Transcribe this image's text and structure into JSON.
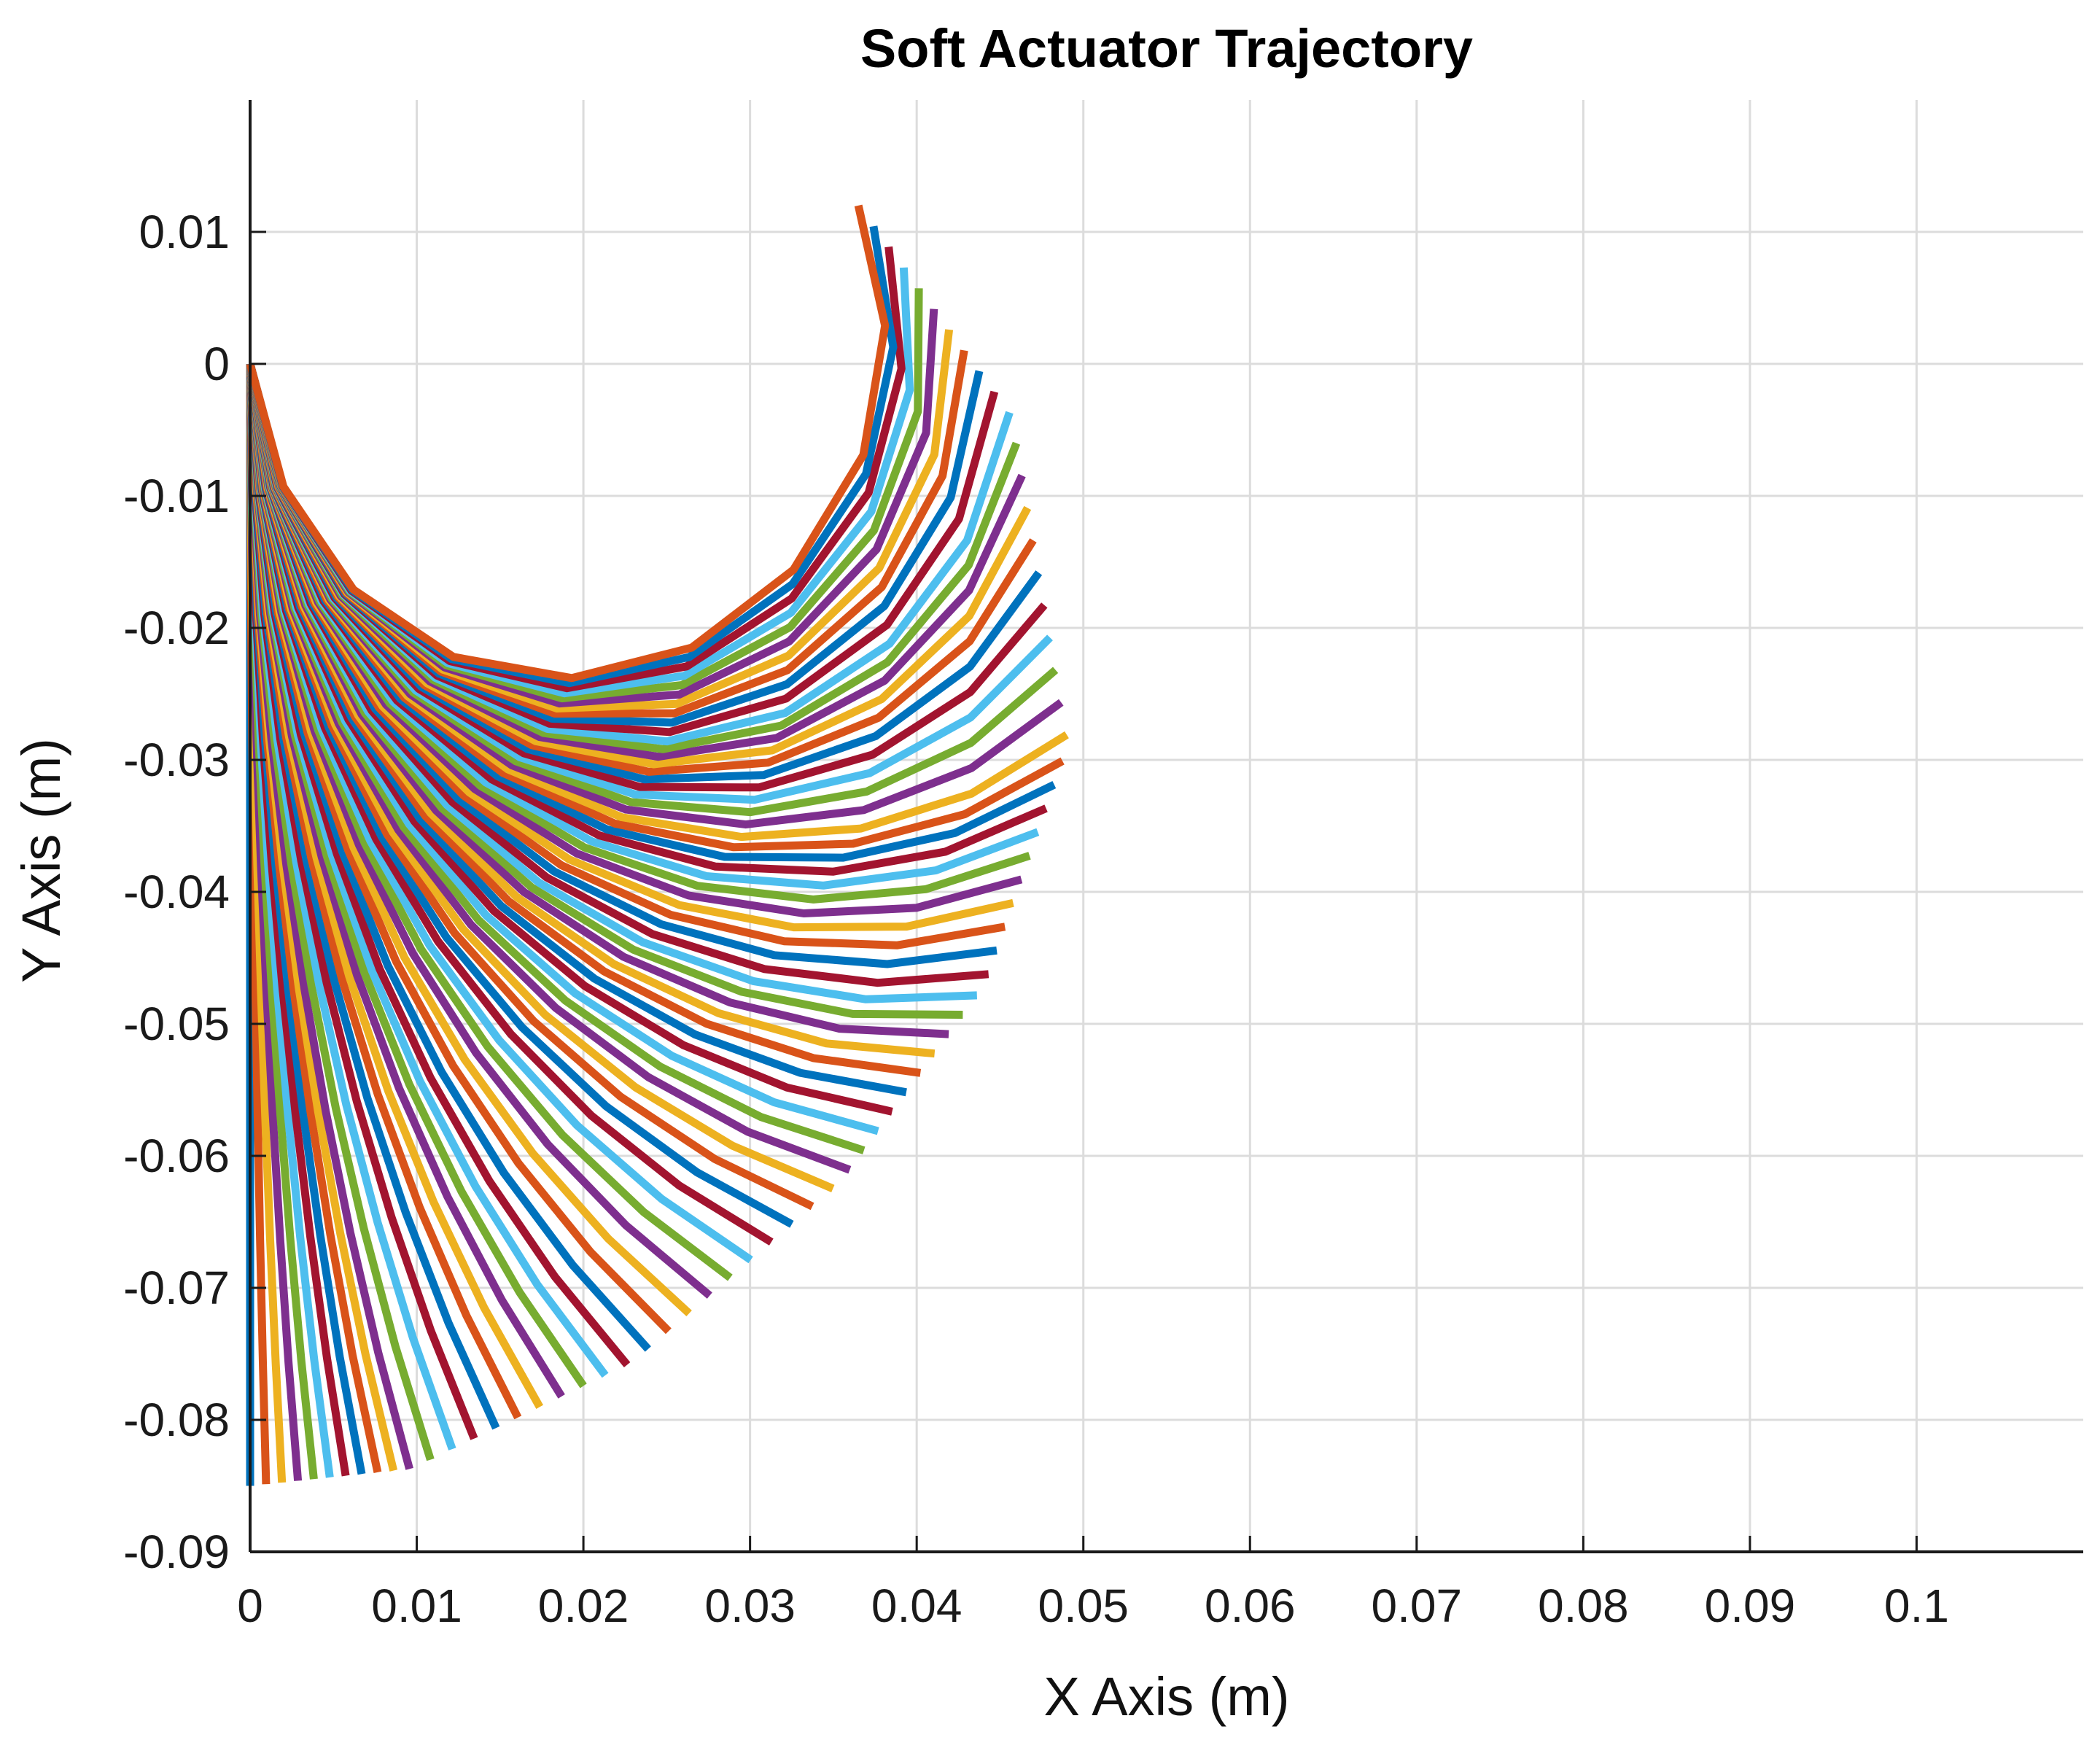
{
  "chart_data": {
    "type": "line",
    "title": "Soft Actuator Trajectory",
    "xlabel": "X Axis (m)",
    "ylabel": "Y Axis (m)",
    "xlim": [
      0,
      0.11
    ],
    "ylim": [
      -0.09,
      0.02
    ],
    "xticks": [
      0,
      0.01,
      0.02,
      0.03,
      0.04,
      0.05,
      0.06,
      0.07,
      0.08,
      0.09,
      0.1
    ],
    "xtick_labels": [
      "0",
      "0.01",
      "0.02",
      "0.03",
      "0.04",
      "0.05",
      "0.06",
      "0.07",
      "0.08",
      "0.09",
      "0.1"
    ],
    "yticks": [
      0.01,
      0,
      -0.01,
      -0.02,
      -0.03,
      -0.04,
      -0.05,
      -0.06,
      -0.07,
      -0.08,
      -0.09
    ],
    "ytick_labels": [
      "0.01",
      "0",
      "-0.01",
      "-0.02",
      "-0.03",
      "-0.04",
      "-0.05",
      "-0.06",
      "-0.07",
      "-0.08",
      "-0.09"
    ],
    "grid": true,
    "legend": "none",
    "colors": [
      "#0072BD",
      "#D95319",
      "#EDB120",
      "#7E2F8E",
      "#77AC30",
      "#4DBEEE",
      "#A2142F"
    ],
    "series_count": 72,
    "series": [
      {
        "x": [
          0,
          0,
          0,
          0,
          0,
          0,
          0,
          0,
          0,
          0
        ],
        "y": [
          0,
          -0.0095,
          -0.019,
          -0.0285,
          -0.038,
          -0.0475,
          -0.057,
          -0.0665,
          -0.076,
          -0.085
        ]
      },
      {
        "x": [
          0,
          0.0002,
          0.0006,
          0.0013,
          0.0022,
          0.0033,
          0.0046,
          0.0061,
          0.0078,
          0.0097
        ],
        "y": [
          0,
          -0.0095,
          -0.019,
          -0.0285,
          -0.0379,
          -0.0473,
          -0.0566,
          -0.0658,
          -0.0749,
          -0.0837
        ]
      },
      {
        "x": [
          0,
          0.0005,
          0.0015,
          0.0031,
          0.0053,
          0.0079,
          0.011,
          0.0146,
          0.0186,
          0.023
        ],
        "y": [
          0,
          -0.0095,
          -0.0189,
          -0.0281,
          -0.0371,
          -0.0458,
          -0.054,
          -0.0618,
          -0.069,
          -0.0756
        ]
      },
      {
        "x": [
          0,
          0.0008,
          0.0025,
          0.0052,
          0.0087,
          0.013,
          0.018,
          0.0235,
          0.0294,
          0.0355
        ],
        "y": [
          0,
          -0.0095,
          -0.0186,
          -0.0273,
          -0.0354,
          -0.0427,
          -0.0491,
          -0.0545,
          -0.0588,
          -0.0619
        ]
      },
      {
        "x": [
          0,
          0.0012,
          0.0036,
          0.0072,
          0.012,
          0.0176,
          0.0239,
          0.0306,
          0.0374,
          0.0441
        ],
        "y": [
          0,
          -0.0094,
          -0.0182,
          -0.0263,
          -0.0333,
          -0.0391,
          -0.0435,
          -0.0463,
          -0.0475,
          -0.047
        ]
      },
      {
        "x": [
          0,
          0.0015,
          0.0047,
          0.0094,
          0.0154,
          0.0222,
          0.0294,
          0.0366,
          0.0433,
          0.0491
        ],
        "y": [
          0,
          -0.0094,
          -0.0179,
          -0.0252,
          -0.0308,
          -0.0345,
          -0.0361,
          -0.0356,
          -0.0331,
          -0.0288
        ]
      },
      {
        "x": [
          0,
          0.0018,
          0.0056,
          0.0111,
          0.0178,
          0.025,
          0.0321,
          0.0384,
          0.0431,
          0.0457
        ],
        "y": [
          0,
          -0.0093,
          -0.0175,
          -0.0238,
          -0.0277,
          -0.0287,
          -0.0266,
          -0.0214,
          -0.0136,
          -0.0039
        ]
      },
      {
        "x": [
          0,
          0.002,
          0.0062,
          0.0122,
          0.0193,
          0.0265,
          0.0326,
          0.0368,
          0.0381,
          0.0365
        ],
        "y": [
          0,
          -0.0093,
          -0.0171,
          -0.0222,
          -0.0238,
          -0.0215,
          -0.0156,
          -0.0069,
          0.0029,
          0.012
        ]
      }
    ],
    "notes": ""
  }
}
